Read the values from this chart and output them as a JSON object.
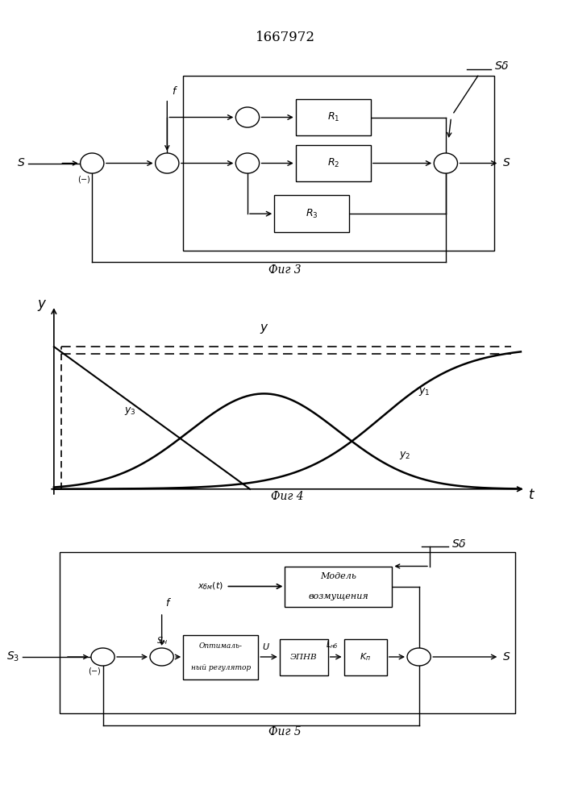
{
  "title": "1667972",
  "fig3_caption": "Фиг 3",
  "fig4_caption": "Фиг 4",
  "fig5_caption": "Фиг 5",
  "background": "#ffffff",
  "line_color": "#000000"
}
